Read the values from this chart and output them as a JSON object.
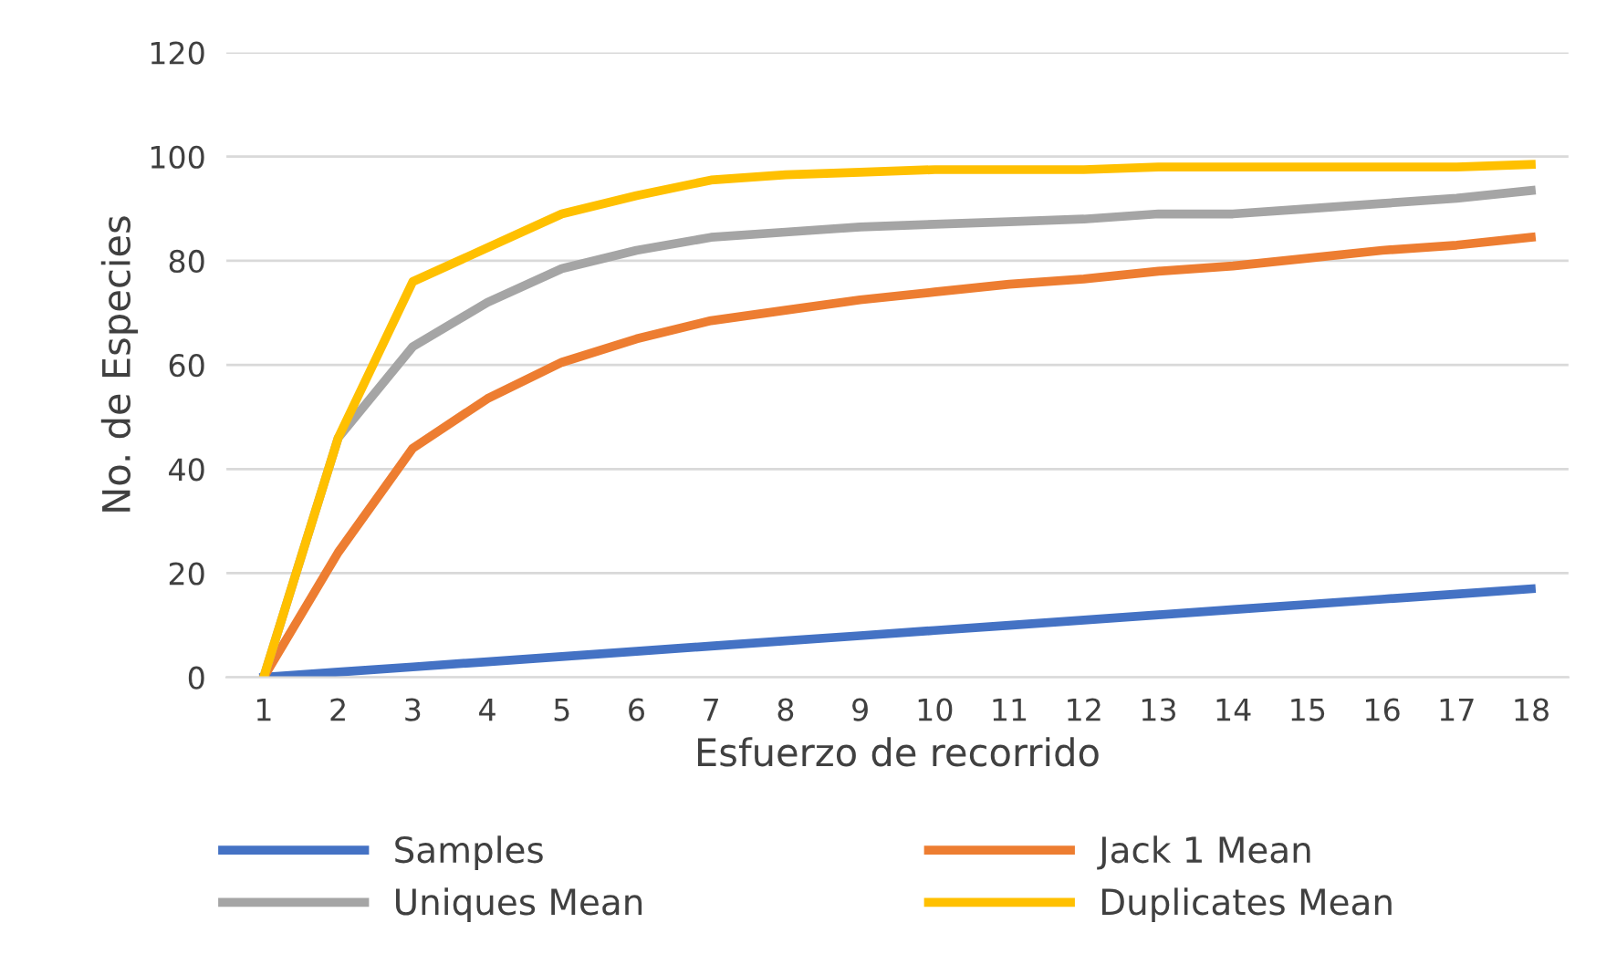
{
  "chart_data": {
    "type": "line",
    "xlabel": "Esfuerzo de recorrido",
    "ylabel": "No. de Especies",
    "categories": [
      "1",
      "2",
      "3",
      "4",
      "5",
      "6",
      "7",
      "8",
      "9",
      "10",
      "11",
      "12",
      "13",
      "14",
      "15",
      "16",
      "17",
      "18"
    ],
    "series": [
      {
        "name": "Samples",
        "color": "#4472c4",
        "values": [
          0,
          1,
          2,
          3,
          4,
          5,
          6,
          7,
          8,
          9,
          10,
          11,
          12,
          13,
          14,
          15,
          16,
          17
        ]
      },
      {
        "name": "Jack 1 Mean",
        "color": "#ed7d31",
        "values": [
          0,
          24,
          44,
          53.5,
          60.5,
          65,
          68.5,
          70.5,
          72.5,
          74,
          75.5,
          76.5,
          78,
          79,
          80.5,
          82,
          83,
          84.5
        ]
      },
      {
        "name": "Uniques Mean",
        "color": "#a5a5a5",
        "values": [
          0,
          46,
          63.5,
          72,
          78.5,
          82,
          84.5,
          85.5,
          86.5,
          87,
          87.5,
          88,
          89,
          89,
          90,
          91,
          92,
          93.5
        ]
      },
      {
        "name": "Duplicates Mean",
        "color": "#ffc000",
        "values": [
          0,
          46,
          76,
          82.5,
          89,
          92.5,
          95.5,
          96.5,
          97,
          97.5,
          97.5,
          97.5,
          98,
          98,
          98,
          98,
          98,
          98.5
        ]
      }
    ],
    "ylim": [
      0,
      120
    ],
    "yticks": [
      0,
      20,
      40,
      60,
      80,
      100,
      120
    ],
    "grid": "y",
    "legend": "bottom",
    "marker": "none",
    "line_style": "solid"
  }
}
